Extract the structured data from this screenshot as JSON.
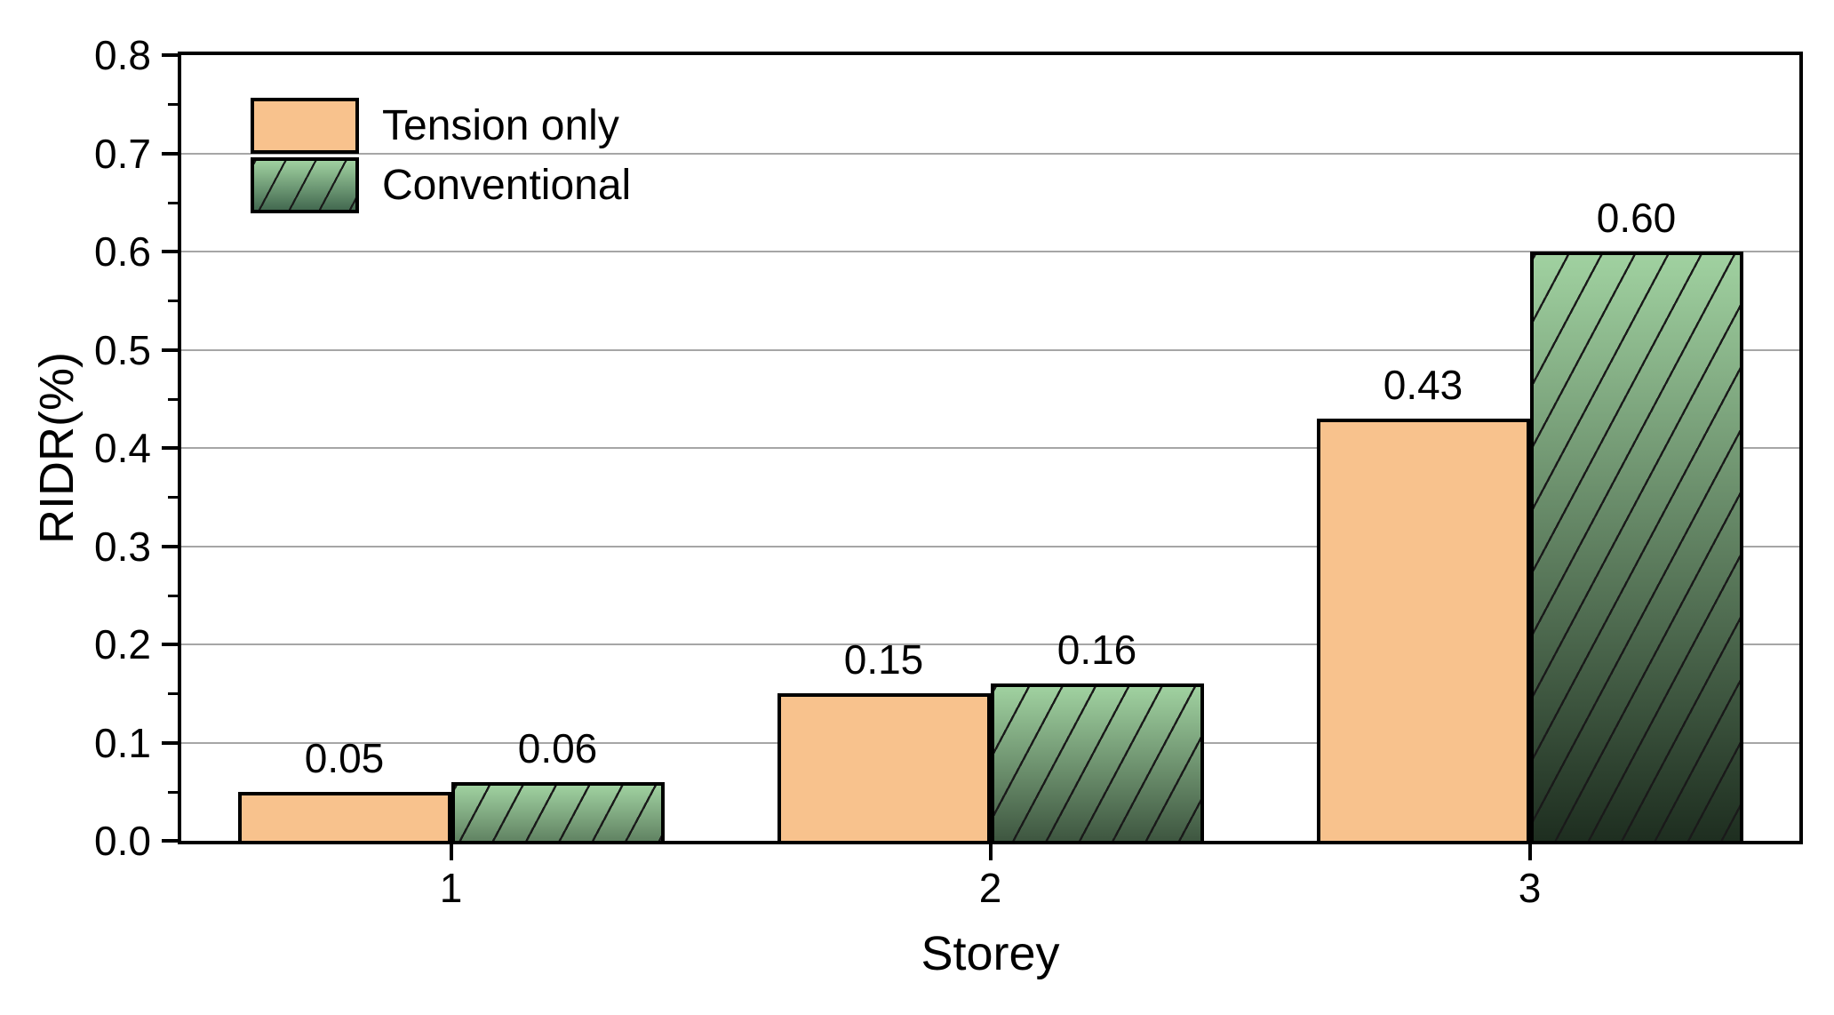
{
  "chart_data": {
    "type": "bar",
    "title": "",
    "xlabel": "Storey",
    "ylabel": "RIDR(%)",
    "categories": [
      "1",
      "2",
      "3"
    ],
    "series": [
      {
        "name": "Tension only",
        "values": [
          0.05,
          0.15,
          0.43
        ],
        "labels": [
          "0.05",
          "0.15",
          "0.43"
        ],
        "style": "solid"
      },
      {
        "name": "Conventional",
        "values": [
          0.06,
          0.16,
          0.6
        ],
        "labels": [
          "0.06",
          "0.16",
          "0.60"
        ],
        "style": "hatched-gradient"
      }
    ],
    "ylim": [
      0.0,
      0.8
    ],
    "y_major_tick_labels": [
      "0.0",
      "0.1",
      "0.2",
      "0.3",
      "0.4",
      "0.5",
      "0.6",
      "0.7",
      "0.8"
    ],
    "y_minor_step": 0.05,
    "grid": "horizontal-major",
    "legend_position": "top-left-inside"
  },
  "colors": {
    "background": "#FFFFFF",
    "axis": "#000000",
    "gridline": "#A6A6A6",
    "text": "#000000",
    "tension_fill": "#F8C28D",
    "conventional_top": "#A0D1A0",
    "conventional_dark": "#0C180F",
    "legend_conventional_bottom": "#436950",
    "hatch_line": "#1A1A1A"
  }
}
